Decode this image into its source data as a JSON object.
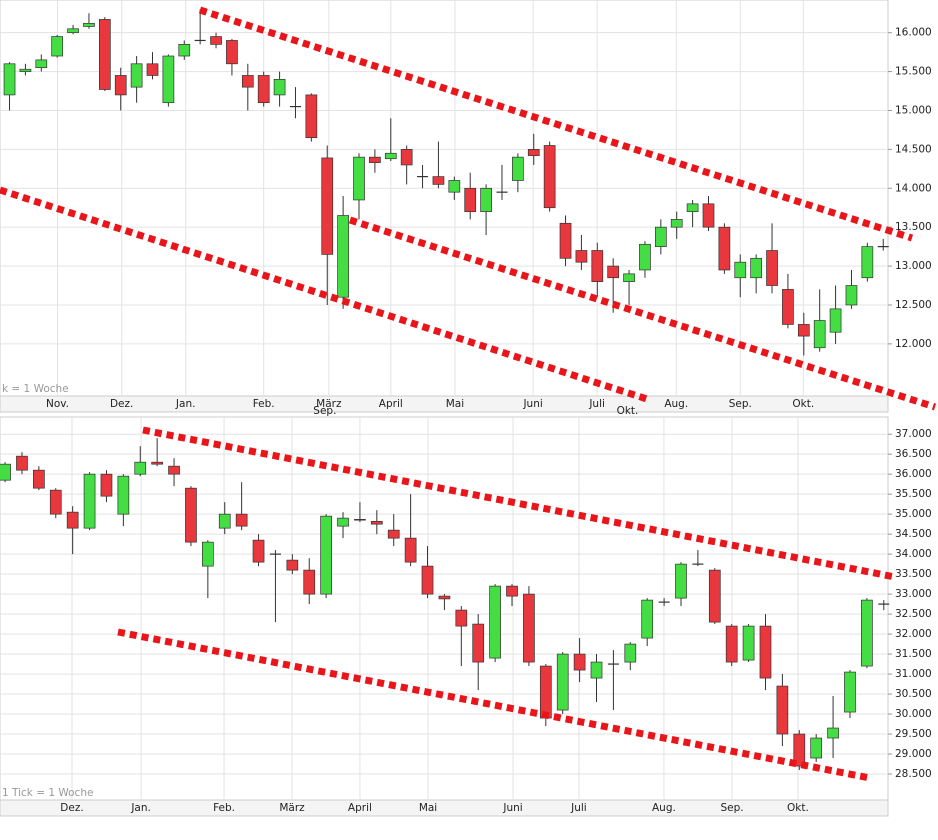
{
  "chart_data": [
    {
      "type": "candlestick",
      "footer": "k = 1 Woche",
      "up_color": "#44dd44",
      "down_color": "#e8383d",
      "grid": true,
      "open": [
        15.2,
        15.5,
        15.55,
        15.7,
        16.0,
        16.08,
        16.17,
        15.45,
        15.3,
        15.6,
        15.1,
        15.7,
        15.9,
        15.95,
        15.9,
        15.45,
        15.45,
        15.2,
        15.05,
        15.2,
        14.39,
        12.6,
        13.85,
        14.4,
        14.38,
        14.5,
        14.15,
        14.15,
        13.95,
        14.0,
        13.7,
        13.95,
        14.1,
        14.5,
        14.55,
        13.55,
        13.2,
        13.2,
        13.0,
        12.8,
        12.95,
        13.25,
        13.5,
        13.7,
        13.8,
        13.5,
        12.85,
        12.85,
        13.2,
        12.7,
        12.25,
        11.95,
        12.15,
        12.5,
        12.85,
        13.25
      ],
      "high": [
        15.62,
        15.6,
        15.72,
        15.97,
        16.1,
        16.25,
        16.2,
        15.55,
        15.7,
        15.75,
        15.72,
        15.9,
        16.3,
        16.0,
        15.92,
        15.6,
        15.5,
        15.5,
        15.3,
        15.22,
        14.55,
        13.9,
        14.45,
        14.5,
        14.9,
        14.55,
        14.3,
        14.6,
        14.15,
        14.2,
        14.05,
        14.3,
        14.45,
        14.7,
        14.6,
        13.65,
        13.4,
        13.3,
        13.1,
        12.95,
        13.32,
        13.6,
        13.7,
        13.85,
        13.9,
        13.55,
        13.15,
        13.15,
        13.55,
        12.9,
        12.4,
        12.7,
        12.75,
        12.95,
        13.3,
        13.35
      ],
      "low": [
        15.0,
        15.45,
        15.5,
        15.68,
        15.98,
        16.05,
        15.25,
        15.0,
        15.1,
        15.4,
        15.05,
        15.65,
        15.85,
        15.8,
        15.45,
        15.0,
        15.05,
        15.05,
        14.9,
        14.6,
        12.5,
        12.45,
        13.6,
        14.2,
        14.35,
        14.05,
        14.0,
        14.0,
        13.85,
        13.6,
        13.4,
        13.85,
        13.95,
        14.3,
        13.7,
        13.0,
        12.95,
        12.6,
        12.4,
        12.5,
        12.85,
        13.15,
        13.35,
        13.5,
        13.45,
        12.9,
        12.6,
        12.65,
        12.65,
        12.2,
        11.85,
        11.9,
        12.0,
        12.45,
        12.8,
        13.2
      ],
      "close": [
        15.6,
        15.53,
        15.65,
        15.95,
        16.05,
        16.12,
        15.27,
        15.2,
        15.6,
        15.45,
        15.7,
        15.85,
        15.9,
        15.85,
        15.6,
        15.3,
        15.1,
        15.4,
        15.05,
        14.65,
        13.15,
        13.65,
        14.4,
        14.33,
        14.45,
        14.3,
        14.15,
        14.05,
        14.1,
        13.7,
        14.0,
        13.95,
        14.4,
        14.42,
        13.75,
        13.1,
        13.05,
        12.8,
        12.85,
        12.9,
        13.28,
        13.5,
        13.6,
        13.8,
        13.5,
        12.95,
        13.05,
        13.1,
        12.75,
        12.25,
        12.1,
        12.3,
        12.45,
        12.75,
        13.25,
        13.25
      ],
      "xlim": [
        -0.6,
        55.3
      ],
      "ylim": [
        11.33,
        16.42
      ],
      "xticks": [
        {
          "value": 3.02,
          "label": "Nov."
        },
        {
          "value": 7.06,
          "label": "Dez."
        },
        {
          "value": 11.09,
          "label": "Jan."
        },
        {
          "value": 16.0,
          "label": "Feb."
        },
        {
          "value": 20.1,
          "label": "März"
        },
        {
          "value": 24.0,
          "label": "April"
        },
        {
          "value": 28.04,
          "label": "Mai"
        },
        {
          "value": 32.96,
          "label": "Juni"
        },
        {
          "value": 36.99,
          "label": "Juli"
        },
        {
          "value": 41.97,
          "label": "Aug."
        },
        {
          "value": 46.0,
          "label": "Sep."
        },
        {
          "value": 49.97,
          "label": "Okt."
        }
      ],
      "xticks_lower": [
        {
          "value": 19.85,
          "label": "Sep."
        },
        {
          "value": 38.9,
          "label": "Okt."
        }
      ],
      "yticks": [
        {
          "value": 12,
          "label": "12.000"
        },
        {
          "value": 12.5,
          "label": "12.500"
        },
        {
          "value": 13,
          "label": "13.000"
        },
        {
          "value": 13.5,
          "label": "13.500"
        },
        {
          "value": 14,
          "label": "14.000"
        },
        {
          "value": 14.5,
          "label": "14.500"
        },
        {
          "value": 15,
          "label": "15.000"
        },
        {
          "value": 15.5,
          "label": "15.500"
        },
        {
          "value": 16,
          "label": "16.000"
        }
      ]
    },
    {
      "type": "candlestick",
      "footer": "1 Tick = 1 Woche",
      "up_color": "#44dd44",
      "down_color": "#e8383d",
      "grid": true,
      "open": [
        35.85,
        36.45,
        36.1,
        35.6,
        35.05,
        34.65,
        36.0,
        35.0,
        36.0,
        36.3,
        36.2,
        35.65,
        33.7,
        34.65,
        35.0,
        34.35,
        34.0,
        33.85,
        33.6,
        33.0,
        34.7,
        34.87,
        34.82,
        34.6,
        34.4,
        33.7,
        32.95,
        32.6,
        32.25,
        31.4,
        33.2,
        33.0,
        31.2,
        30.1,
        31.5,
        30.9,
        31.25,
        31.3,
        31.9,
        32.8,
        32.9,
        33.75,
        33.6,
        32.2,
        31.35,
        32.2,
        30.7,
        29.5,
        28.9,
        29.4,
        30.05,
        31.2,
        32.75
      ],
      "high": [
        36.3,
        36.55,
        36.2,
        35.65,
        35.2,
        36.05,
        36.1,
        36.0,
        36.7,
        36.9,
        36.4,
        35.7,
        34.35,
        35.3,
        35.8,
        34.5,
        34.1,
        34.0,
        33.9,
        35.0,
        35.05,
        35.3,
        35.1,
        35.0,
        35.5,
        34.2,
        33.0,
        32.7,
        32.5,
        33.25,
        33.25,
        33.2,
        31.25,
        31.55,
        31.9,
        31.5,
        31.6,
        31.8,
        32.9,
        32.9,
        33.8,
        34.1,
        33.65,
        32.25,
        32.25,
        32.5,
        31.0,
        29.6,
        29.5,
        30.45,
        31.1,
        32.9,
        32.85
      ],
      "low": [
        35.8,
        36.0,
        35.6,
        34.9,
        34.0,
        34.6,
        35.3,
        34.7,
        35.95,
        36.2,
        35.7,
        34.2,
        32.9,
        34.5,
        34.6,
        33.7,
        32.3,
        33.5,
        32.75,
        32.9,
        34.4,
        34.8,
        34.5,
        34.2,
        33.7,
        32.9,
        32.6,
        31.2,
        30.6,
        31.3,
        32.7,
        31.2,
        29.7,
        30.0,
        30.8,
        30.3,
        30.1,
        31.1,
        31.7,
        32.7,
        32.7,
        33.7,
        32.25,
        31.2,
        31.3,
        30.6,
        29.2,
        28.6,
        28.8,
        28.9,
        29.9,
        31.15,
        32.6
      ],
      "close": [
        36.25,
        36.1,
        35.65,
        35.0,
        34.65,
        36.0,
        35.45,
        35.95,
        36.3,
        36.25,
        36.0,
        34.3,
        34.3,
        35.0,
        34.7,
        33.8,
        34.0,
        33.6,
        33.0,
        34.95,
        34.9,
        34.85,
        34.75,
        34.4,
        33.8,
        33.0,
        32.88,
        32.2,
        31.3,
        33.2,
        32.95,
        31.3,
        29.9,
        31.5,
        31.1,
        31.3,
        31.25,
        31.75,
        32.85,
        32.8,
        33.75,
        33.75,
        32.3,
        31.3,
        32.2,
        30.9,
        29.5,
        28.7,
        29.4,
        29.65,
        31.05,
        32.85,
        32.75
      ],
      "xlim": [
        -0.3,
        52.25
      ],
      "ylim": [
        27.85,
        37.43
      ],
      "xticks": [
        {
          "value": 3.96,
          "label": "Dez."
        },
        {
          "value": 8.05,
          "label": "Jan."
        },
        {
          "value": 12.96,
          "label": "Feb."
        },
        {
          "value": 16.98,
          "label": "März"
        },
        {
          "value": 21.0,
          "label": "April"
        },
        {
          "value": 25.03,
          "label": "Mai"
        },
        {
          "value": 30.06,
          "label": "Juni"
        },
        {
          "value": 33.96,
          "label": "Juli"
        },
        {
          "value": 38.99,
          "label": "Aug."
        },
        {
          "value": 43.02,
          "label": "Sep."
        },
        {
          "value": 46.92,
          "label": "Okt."
        }
      ],
      "yticks": [
        {
          "value": 28.5,
          "label": "28.500"
        },
        {
          "value": 29,
          "label": "29.000"
        },
        {
          "value": 29.5,
          "label": "29.500"
        },
        {
          "value": 30,
          "label": "30.000"
        },
        {
          "value": 30.5,
          "label": "30.500"
        },
        {
          "value": 31,
          "label": "31.000"
        },
        {
          "value": 31.5,
          "label": "31.500"
        },
        {
          "value": 32,
          "label": "32.000"
        },
        {
          "value": 32.5,
          "label": "32.500"
        },
        {
          "value": 33,
          "label": "33.000"
        },
        {
          "value": 33.5,
          "label": "33.500"
        },
        {
          "value": 34,
          "label": "34.000"
        },
        {
          "value": 34.5,
          "label": "34.500"
        },
        {
          "value": 35,
          "label": "35.000"
        },
        {
          "value": 35.5,
          "label": "35.500"
        },
        {
          "value": 36,
          "label": "36.000"
        },
        {
          "value": 36.5,
          "label": "36.500"
        },
        {
          "value": 37,
          "label": "37.000"
        }
      ]
    }
  ]
}
